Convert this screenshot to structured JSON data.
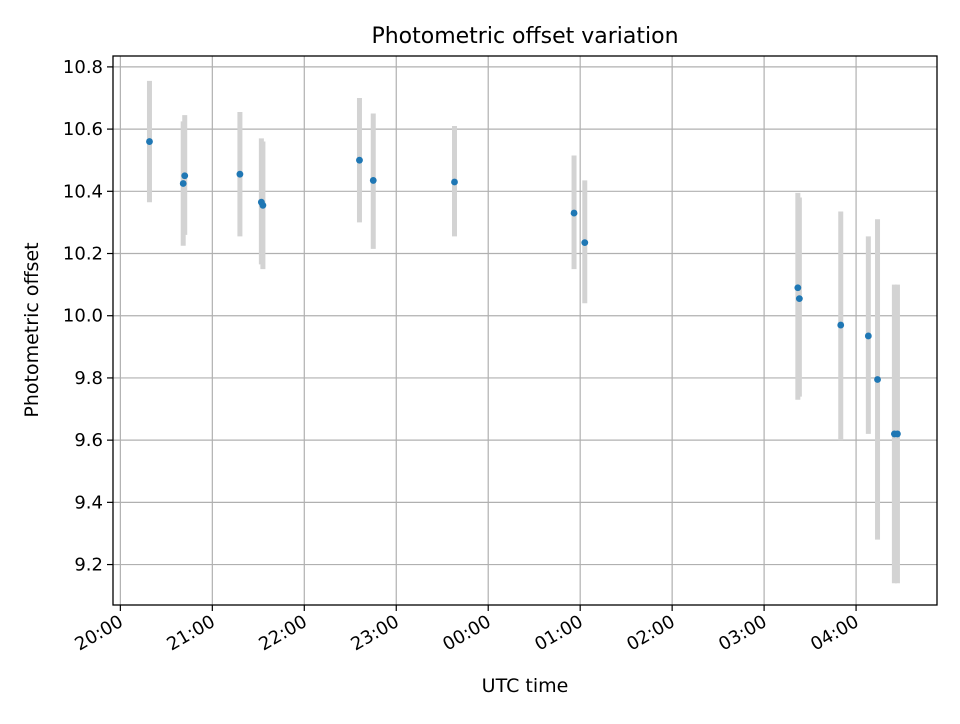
{
  "chart_data": {
    "type": "scatter",
    "title": "Photometric offset variation",
    "xlabel": "UTC time",
    "ylabel": "Photometric offset",
    "grid": true,
    "xlim_hours": [
      19.92,
      28.88
    ],
    "ylim": [
      9.07,
      10.835
    ],
    "x_ticks": [
      "20:00",
      "21:00",
      "22:00",
      "23:00",
      "00:00",
      "01:00",
      "02:00",
      "03:00",
      "04:00"
    ],
    "y_ticks": [
      "9.2",
      "9.4",
      "9.6",
      "9.8",
      "10.0",
      "10.2",
      "10.4",
      "10.6",
      "10.8"
    ],
    "colors": {
      "point": "#1f77b4",
      "errorbar": "#d3d3d3",
      "grid": "#b0b0b0"
    },
    "points": [
      {
        "time": "20:19",
        "y": 10.56,
        "err_low": 10.365,
        "err_high": 10.755
      },
      {
        "time": "20:41",
        "y": 10.425,
        "err_low": 10.225,
        "err_high": 10.625
      },
      {
        "time": "20:42",
        "y": 10.45,
        "err_low": 10.26,
        "err_high": 10.645
      },
      {
        "time": "21:18",
        "y": 10.455,
        "err_low": 10.255,
        "err_high": 10.655
      },
      {
        "time": "21:32",
        "y": 10.365,
        "err_low": 10.165,
        "err_high": 10.57
      },
      {
        "time": "21:33",
        "y": 10.355,
        "err_low": 10.15,
        "err_high": 10.56
      },
      {
        "time": "22:36",
        "y": 10.5,
        "err_low": 10.3,
        "err_high": 10.7
      },
      {
        "time": "22:45",
        "y": 10.435,
        "err_low": 10.215,
        "err_high": 10.65
      },
      {
        "time": "23:38",
        "y": 10.43,
        "err_low": 10.255,
        "err_high": 10.61
      },
      {
        "time": "00:56",
        "y": 10.33,
        "err_low": 10.15,
        "err_high": 10.515
      },
      {
        "time": "01:03",
        "y": 10.235,
        "err_low": 10.04,
        "err_high": 10.435
      },
      {
        "time": "03:22",
        "y": 10.09,
        "err_low": 9.73,
        "err_high": 10.395
      },
      {
        "time": "03:23",
        "y": 10.055,
        "err_low": 9.74,
        "err_high": 10.38
      },
      {
        "time": "03:50",
        "y": 9.97,
        "err_low": 9.6,
        "err_high": 10.335
      },
      {
        "time": "04:08",
        "y": 9.935,
        "err_low": 9.62,
        "err_high": 10.255
      },
      {
        "time": "04:14",
        "y": 9.795,
        "err_low": 9.28,
        "err_high": 10.31
      },
      {
        "time": "04:25",
        "y": 9.62,
        "err_low": 9.14,
        "err_high": 10.1
      },
      {
        "time": "04:27",
        "y": 9.62,
        "err_low": 9.14,
        "err_high": 10.1
      }
    ]
  }
}
